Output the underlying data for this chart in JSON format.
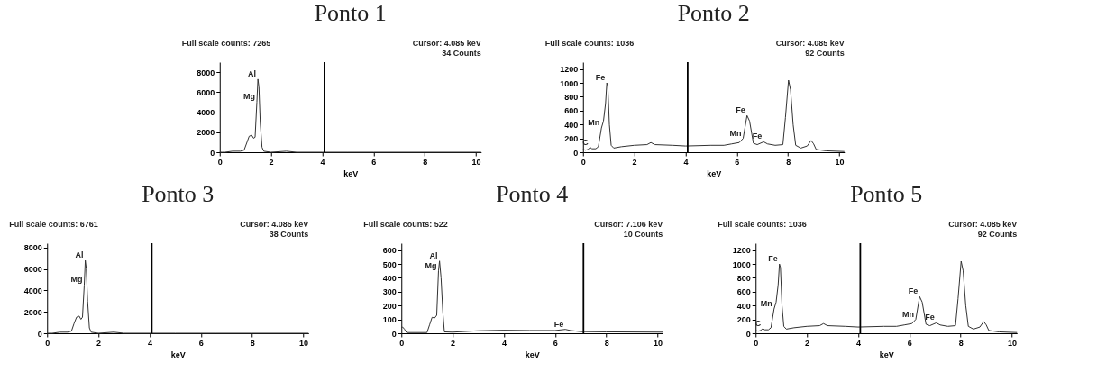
{
  "chart_data": [
    {
      "type": "line",
      "title": "Ponto 1",
      "xlabel": "keV",
      "xlim": [
        0,
        10.2
      ],
      "xticks": [
        0,
        2,
        4,
        6,
        8,
        10
      ],
      "ylim": [
        0,
        9000
      ],
      "yticks": [
        0,
        2000,
        4000,
        6000,
        8000
      ],
      "annotations": [
        "Full scale counts: 7265",
        "Cursor:    4.085 keV",
        "34 Counts",
        {
          "text": "Al",
          "x": 1.49,
          "y": 7300
        },
        {
          "text": "Mg",
          "x": 1.45,
          "y": 5000
        }
      ],
      "ref_lines": [
        {
          "axis": "x",
          "value": 4.085,
          "color": "#000000"
        }
      ],
      "series": [
        {
          "color": "#333333",
          "x": [
            0,
            0.1,
            0.2,
            0.5,
            0.8,
            0.95,
            1.05,
            1.15,
            1.25,
            1.32,
            1.38,
            1.45,
            1.49,
            1.53,
            1.58,
            1.65,
            1.72,
            2,
            2.6,
            3,
            4,
            5,
            6,
            6.6,
            8,
            10.2
          ],
          "values": [
            0,
            0,
            0,
            100,
            100,
            200,
            900,
            1600,
            1700,
            1400,
            1500,
            5000,
            7300,
            6500,
            3000,
            500,
            100,
            0,
            100,
            0,
            0,
            0,
            0,
            0,
            0,
            0
          ]
        }
      ]
    },
    {
      "type": "line",
      "title": "Ponto 2",
      "xlabel": "keV",
      "xlim": [
        0,
        10.2
      ],
      "xticks": [
        0,
        2,
        4,
        6,
        8,
        10
      ],
      "ylim": [
        0,
        1300
      ],
      "yticks": [
        0,
        200,
        400,
        600,
        800,
        1000,
        1200
      ],
      "annotations": [
        "Full scale counts: 1036",
        "Cursor:    4.085 keV",
        "92 Counts",
        {
          "text": "Fe",
          "x": 0.93,
          "y": 1000
        },
        {
          "text": "C",
          "x": 0.28,
          "y": 70
        },
        {
          "text": "Mn",
          "x": 0.72,
          "y": 350
        },
        {
          "text": "Fe",
          "x": 6.4,
          "y": 530
        },
        {
          "text": "Mn",
          "x": 6.25,
          "y": 200
        },
        {
          "text": "Fe",
          "x": 7.05,
          "y": 150
        }
      ],
      "ref_lines": [
        {
          "axis": "x",
          "value": 4.085,
          "color": "#000000"
        }
      ],
      "series": [
        {
          "color": "#333333",
          "x": [
            0,
            0.1,
            0.2,
            0.28,
            0.35,
            0.5,
            0.6,
            0.72,
            0.8,
            0.88,
            0.93,
            0.97,
            1.03,
            1.1,
            1.2,
            1.5,
            2,
            2.5,
            2.65,
            2.8,
            3.5,
            4,
            5,
            5.5,
            5.8,
            6.1,
            6.25,
            6.4,
            6.5,
            6.65,
            6.8,
            7.05,
            7.2,
            7.5,
            7.8,
            7.9,
            8.02,
            8.1,
            8.2,
            8.3,
            8.5,
            8.75,
            8.9,
            9.0,
            9.1,
            9.5,
            10.2
          ],
          "values": [
            40,
            30,
            40,
            70,
            50,
            50,
            80,
            350,
            450,
            700,
            1000,
            950,
            400,
            100,
            60,
            80,
            100,
            110,
            140,
            110,
            100,
            90,
            100,
            100,
            120,
            140,
            200,
            530,
            450,
            130,
            110,
            150,
            120,
            100,
            110,
            500,
            1040,
            900,
            400,
            100,
            60,
            90,
            170,
            120,
            40,
            20,
            10
          ]
        }
      ]
    },
    {
      "type": "line",
      "title": "Ponto 3",
      "xlabel": "keV",
      "xlim": [
        0,
        10.2
      ],
      "xticks": [
        0,
        2,
        4,
        6,
        8,
        10
      ],
      "ylim": [
        0,
        8400
      ],
      "yticks": [
        0,
        2000,
        4000,
        6000,
        8000
      ],
      "annotations": [
        "Full scale counts: 6761",
        "Cursor:    4.085 keV",
        "38 Counts",
        {
          "text": "Al",
          "x": 1.49,
          "y": 6800
        },
        {
          "text": "Mg",
          "x": 1.45,
          "y": 4500
        }
      ],
      "ref_lines": [
        {
          "axis": "x",
          "value": 4.085,
          "color": "#000000"
        }
      ],
      "series": [
        {
          "color": "#333333",
          "x": [
            0,
            0.1,
            0.2,
            0.5,
            0.8,
            0.95,
            1.05,
            1.15,
            1.25,
            1.32,
            1.38,
            1.45,
            1.49,
            1.53,
            1.58,
            1.65,
            1.72,
            2,
            2.6,
            3,
            4,
            5,
            6,
            6.6,
            8,
            10.2
          ],
          "values": [
            0,
            0,
            0,
            100,
            100,
            200,
            900,
            1500,
            1600,
            1300,
            1500,
            4500,
            6800,
            6000,
            3000,
            500,
            100,
            0,
            100,
            0,
            0,
            0,
            0,
            0,
            0,
            0
          ]
        }
      ]
    },
    {
      "type": "line",
      "title": "Ponto 4",
      "xlabel": "keV",
      "xlim": [
        0,
        10.2
      ],
      "xticks": [
        0,
        2,
        4,
        6,
        8,
        10
      ],
      "ylim": [
        0,
        650
      ],
      "yticks": [
        0,
        100,
        200,
        300,
        400,
        500,
        600
      ],
      "annotations": [
        "Full scale counts: 522",
        "Cursor:    7.106 keV",
        "10 Counts",
        {
          "text": "Al",
          "x": 1.49,
          "y": 522
        },
        {
          "text": "Mg",
          "x": 1.45,
          "y": 450
        },
        {
          "text": "Fe",
          "x": 6.4,
          "y": 28
        }
      ],
      "ref_lines": [
        {
          "axis": "x",
          "value": 7.106,
          "color": "#000000"
        }
      ],
      "series": [
        {
          "color": "#333333",
          "x": [
            0,
            0.05,
            0.12,
            0.2,
            1,
            1.1,
            1.2,
            1.3,
            1.38,
            1.45,
            1.49,
            1.55,
            1.62,
            1.68,
            2,
            3,
            4,
            5,
            6,
            6.4,
            6.6,
            7,
            8,
            10.2
          ],
          "values": [
            40,
            45,
            30,
            5,
            5,
            60,
            115,
            110,
            130,
            450,
            522,
            400,
            150,
            10,
            8,
            18,
            22,
            20,
            20,
            28,
            20,
            12,
            10,
            8
          ]
        }
      ]
    },
    {
      "type": "line",
      "title": "Ponto 5",
      "xlabel": "keV",
      "xlim": [
        0,
        10.2
      ],
      "xticks": [
        0,
        2,
        4,
        6,
        8,
        10
      ],
      "ylim": [
        0,
        1300
      ],
      "yticks": [
        0,
        200,
        400,
        600,
        800,
        1000,
        1200
      ],
      "annotations": [
        "Full scale counts: 1036",
        "Cursor:    4.085 keV",
        "92 Counts",
        {
          "text": "Fe",
          "x": 0.93,
          "y": 1000
        },
        {
          "text": "C",
          "x": 0.28,
          "y": 70
        },
        {
          "text": "Mn",
          "x": 0.72,
          "y": 350
        },
        {
          "text": "Fe",
          "x": 6.4,
          "y": 530
        },
        {
          "text": "Mn",
          "x": 6.25,
          "y": 200
        },
        {
          "text": "Fe",
          "x": 7.05,
          "y": 150
        }
      ],
      "ref_lines": [
        {
          "axis": "x",
          "value": 4.085,
          "color": "#000000"
        }
      ],
      "series": [
        {
          "color": "#333333",
          "x": [
            0,
            0.1,
            0.2,
            0.28,
            0.35,
            0.5,
            0.6,
            0.72,
            0.8,
            0.88,
            0.93,
            0.97,
            1.03,
            1.1,
            1.2,
            1.5,
            2,
            2.5,
            2.65,
            2.8,
            3.5,
            4,
            5,
            5.5,
            5.8,
            6.1,
            6.25,
            6.4,
            6.5,
            6.65,
            6.8,
            7.05,
            7.2,
            7.5,
            7.8,
            7.9,
            8.02,
            8.1,
            8.2,
            8.3,
            8.5,
            8.75,
            8.9,
            9.0,
            9.1,
            9.5,
            10.2
          ],
          "values": [
            40,
            30,
            40,
            70,
            50,
            50,
            80,
            350,
            450,
            700,
            1000,
            950,
            400,
            100,
            60,
            80,
            100,
            110,
            140,
            110,
            100,
            90,
            100,
            100,
            120,
            140,
            200,
            530,
            450,
            130,
            110,
            150,
            120,
            100,
            110,
            500,
            1040,
            900,
            400,
            100,
            60,
            90,
            170,
            120,
            40,
            20,
            10
          ]
        }
      ]
    }
  ]
}
